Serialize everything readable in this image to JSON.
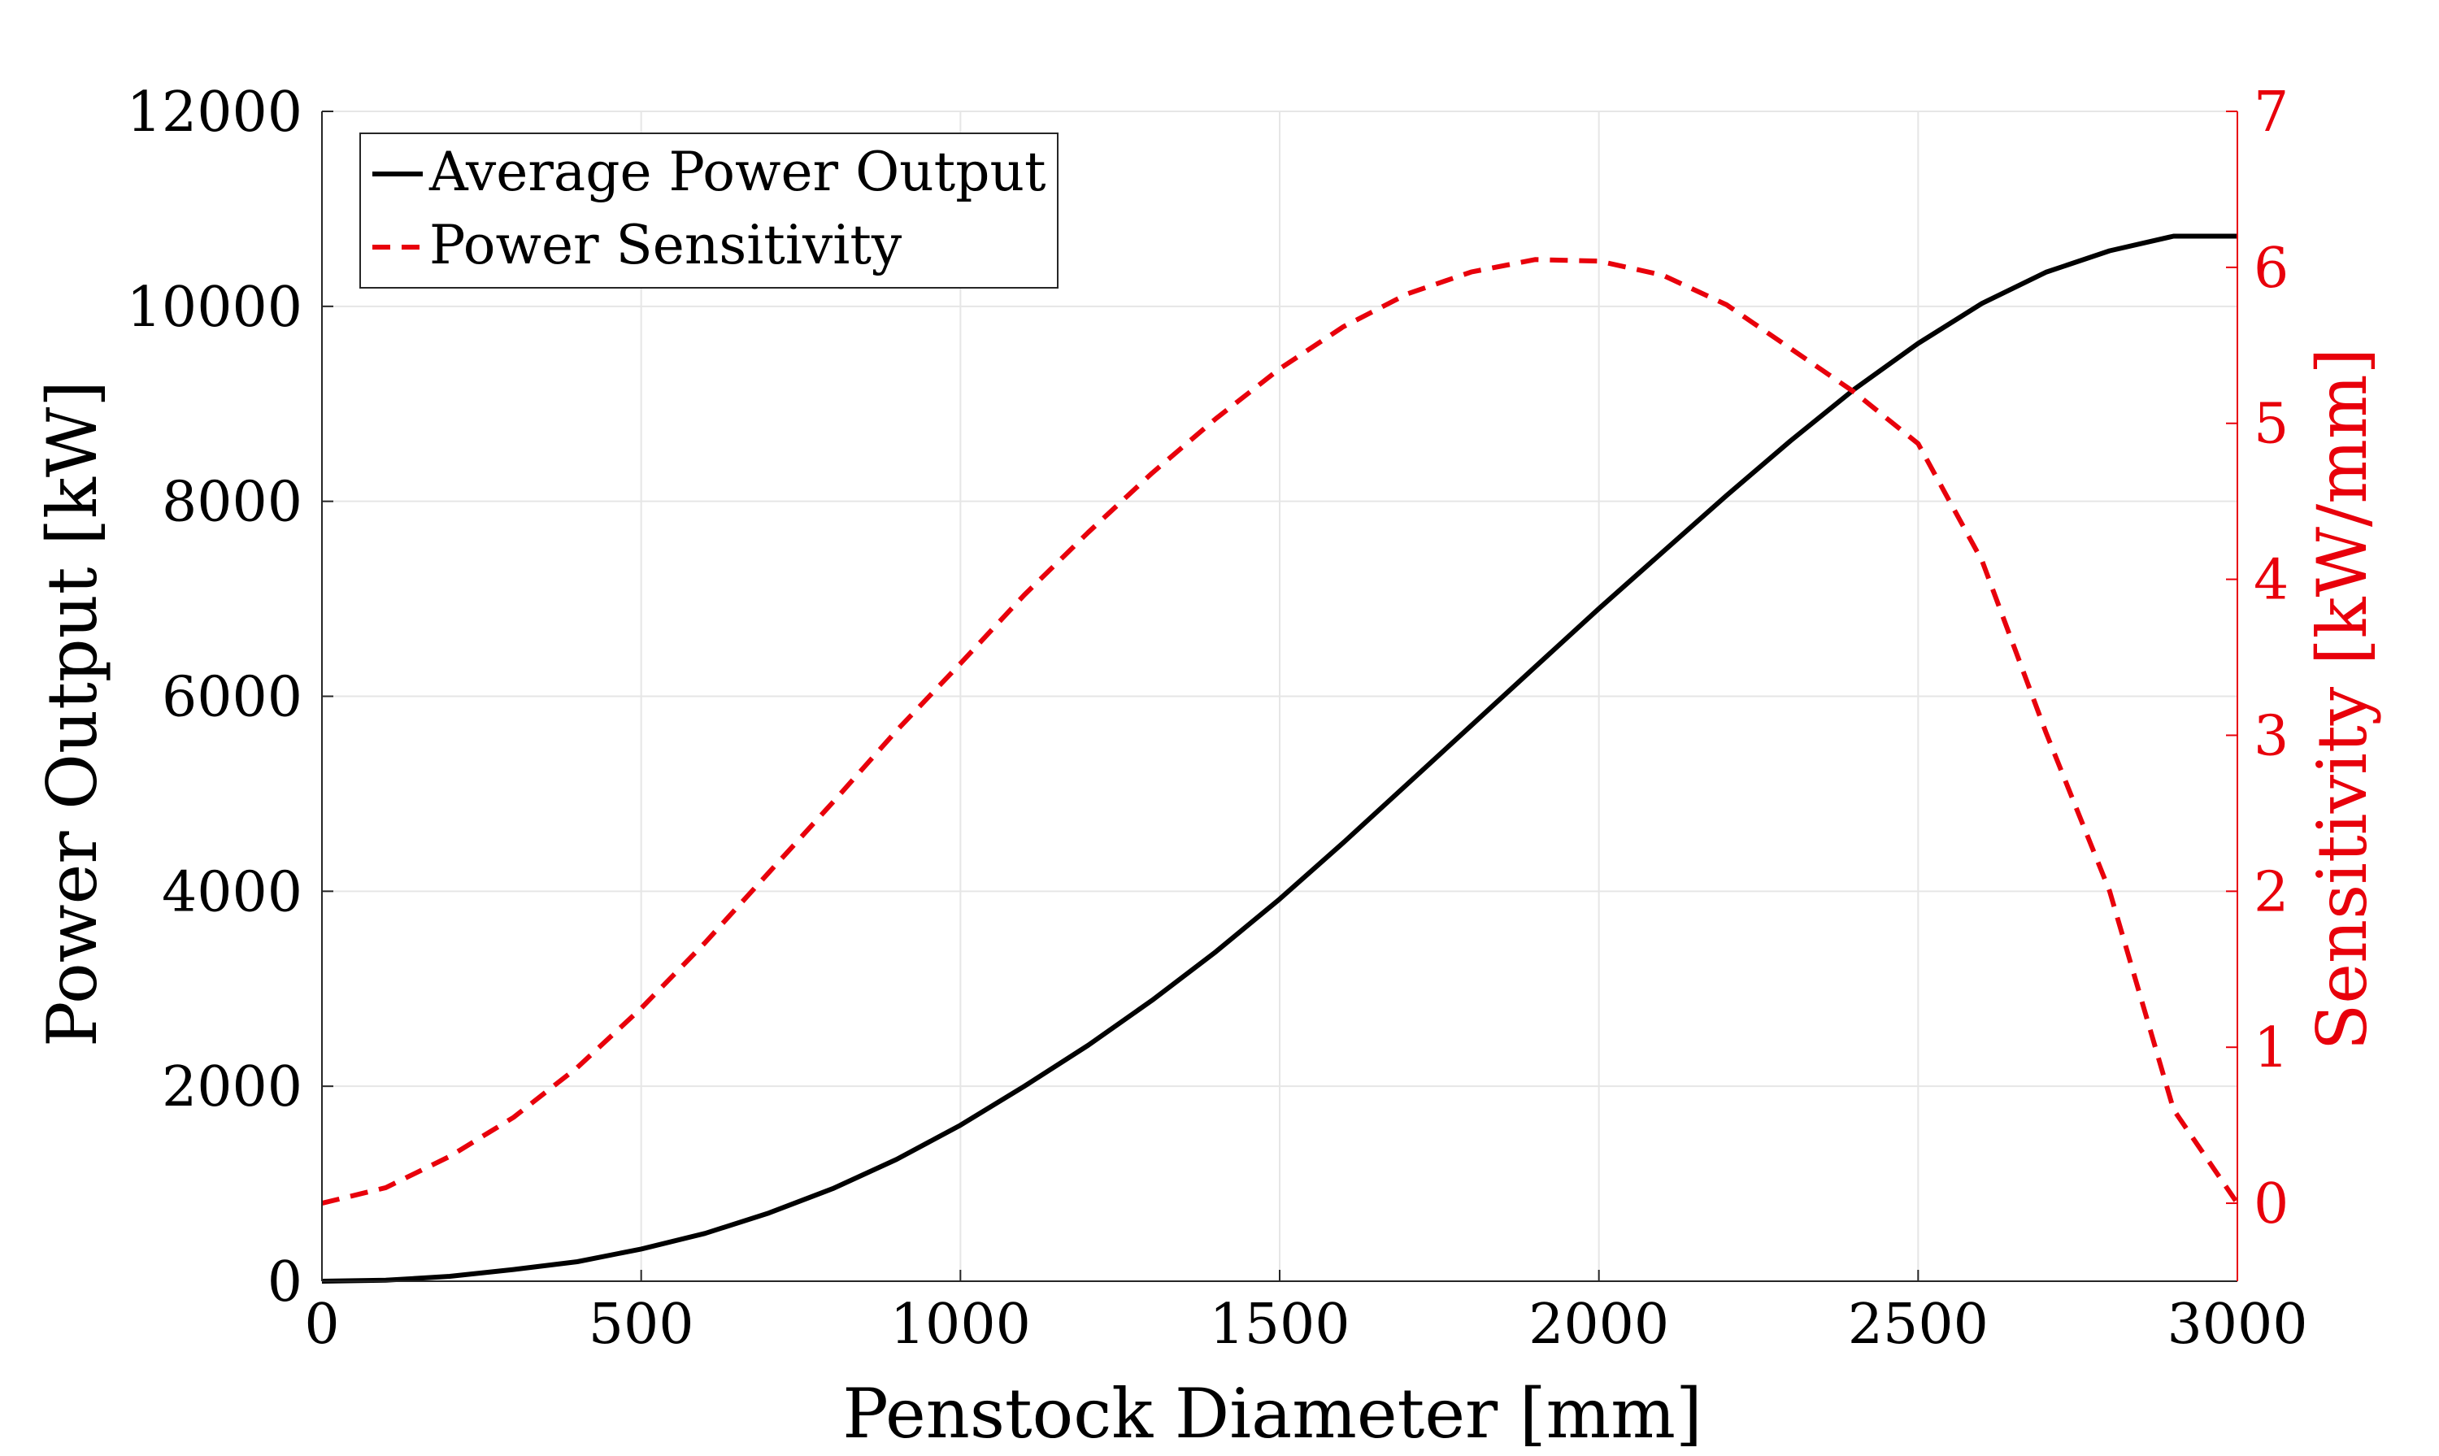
{
  "chart_data": {
    "type": "line",
    "title": "",
    "xlabel": "Penstock Diameter [mm]",
    "ylabel_left": "Power Output [kW]",
    "ylabel_right": "Sensitivity [kW/mm]",
    "xlim": [
      0,
      3000
    ],
    "ylim_left": [
      0,
      12000
    ],
    "ylim_right": [
      -0.5,
      7
    ],
    "xticks": [
      "0",
      "500",
      "1000",
      "1500",
      "2000",
      "2500",
      "3000"
    ],
    "yticks_left": [
      "0",
      "2000",
      "4000",
      "6000",
      "8000",
      "10000",
      "12000"
    ],
    "yticks_right": [
      "0",
      "1",
      "2",
      "3",
      "4",
      "5",
      "6",
      "7"
    ],
    "grid": true,
    "legend_position": "top-left",
    "colors": {
      "power": "#000000",
      "sensitivity": "#e8000b",
      "grid": "#e6e6e6"
    },
    "x": [
      0,
      100,
      200,
      300,
      400,
      500,
      600,
      700,
      800,
      900,
      1000,
      1100,
      1200,
      1300,
      1400,
      1500,
      1600,
      1700,
      1800,
      1900,
      2000,
      2100,
      2200,
      2300,
      2400,
      2500,
      2600,
      2700,
      2800,
      2900,
      3000
    ],
    "series": [
      {
        "name": "Average Power Output",
        "axis": "left",
        "style": "solid",
        "values": [
          0,
          10,
          50,
          120,
          200,
          330,
          490,
          700,
          950,
          1250,
          1600,
          2000,
          2420,
          2880,
          3380,
          3920,
          4500,
          5100,
          5700,
          6300,
          6900,
          7480,
          8060,
          8620,
          9150,
          9620,
          10030,
          10350,
          10570,
          10720,
          10720
        ]
      },
      {
        "name": "Power Sensitivity",
        "axis": "right",
        "style": "dashed",
        "values": [
          0.0,
          0.1,
          0.3,
          0.55,
          0.87,
          1.25,
          1.67,
          2.12,
          2.57,
          3.03,
          3.46,
          3.9,
          4.3,
          4.68,
          5.03,
          5.35,
          5.62,
          5.83,
          5.97,
          6.05,
          6.04,
          5.95,
          5.76,
          5.48,
          5.2,
          4.87,
          4.12,
          3.02,
          2.0,
          0.6,
          0.0
        ]
      }
    ]
  }
}
